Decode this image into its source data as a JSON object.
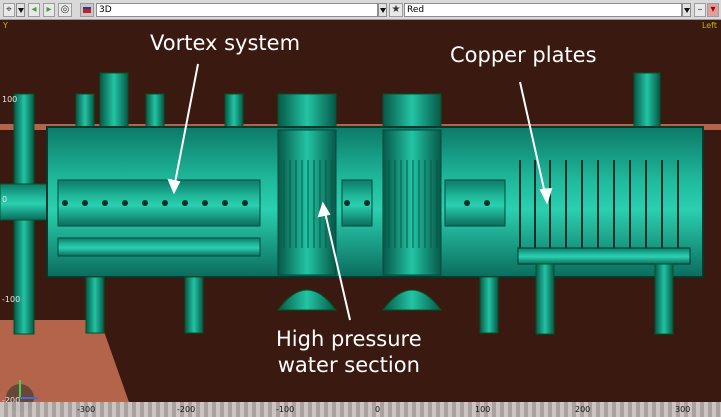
{
  "toolbar": {
    "view_label": "3D",
    "color_label": "Red",
    "icons": [
      "cursor-icon",
      "back-icon",
      "forward-icon",
      "reset-icon",
      "cube-icon",
      "star-icon",
      "close-icon"
    ]
  },
  "viewport": {
    "axis_letter": "Y",
    "view_mode": "Left",
    "y_ticks": [
      "100",
      "0",
      "-100",
      "-200"
    ],
    "x_ticks": [
      "-300",
      "-200",
      "-100",
      "0",
      "100",
      "200",
      "300"
    ],
    "colors": {
      "background": "#3a1a10",
      "vessel": "#0f8a78",
      "vessel_light": "#25c4a6",
      "rust": "#b3644a"
    }
  },
  "annotations": {
    "vortex": "Vortex system",
    "copper": "Copper plates",
    "hp": "High pressure\nwater section"
  }
}
